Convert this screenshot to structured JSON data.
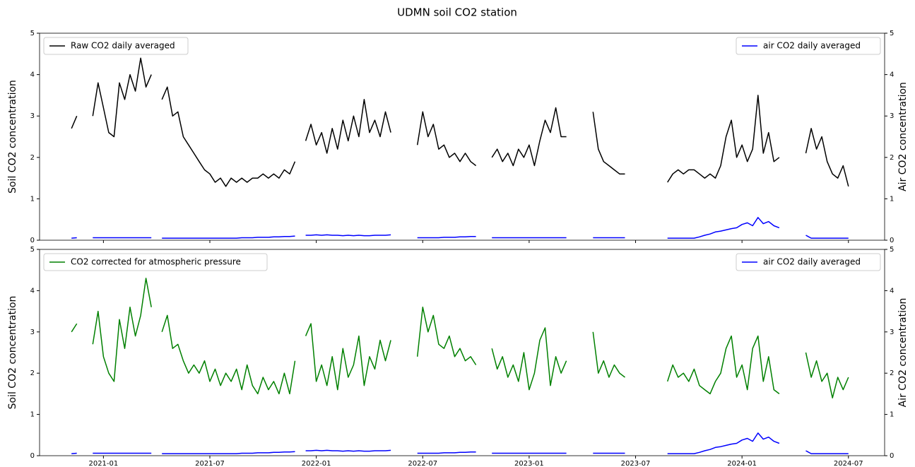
{
  "title": "UDMN soil CO2 station",
  "chart_data": [
    {
      "type": "line",
      "ylabel": "Soil CO2 concentration",
      "y2label": "Air CO2 concentration",
      "x": [
        2020.85,
        2020.875,
        2020.9,
        2020.925,
        2020.95,
        2020.975,
        2021.0,
        2021.025,
        2021.05,
        2021.075,
        2021.1,
        2021.125,
        2021.15,
        2021.175,
        2021.2,
        2021.225,
        2021.25,
        2021.275,
        2021.3,
        2021.325,
        2021.35,
        2021.375,
        2021.4,
        2021.425,
        2021.45,
        2021.475,
        2021.5,
        2021.525,
        2021.55,
        2021.575,
        2021.6,
        2021.625,
        2021.65,
        2021.675,
        2021.7,
        2021.725,
        2021.75,
        2021.775,
        2021.8,
        2021.825,
        2021.85,
        2021.875,
        2021.9,
        2021.925,
        2021.95,
        2021.975,
        2022.0,
        2022.025,
        2022.05,
        2022.075,
        2022.1,
        2022.125,
        2022.15,
        2022.175,
        2022.2,
        2022.225,
        2022.25,
        2022.275,
        2022.3,
        2022.325,
        2022.35,
        2022.375,
        2022.4,
        2022.425,
        2022.45,
        2022.475,
        2022.5,
        2022.525,
        2022.55,
        2022.575,
        2022.6,
        2022.625,
        2022.65,
        2022.675,
        2022.7,
        2022.725,
        2022.75,
        2022.775,
        2022.8,
        2022.825,
        2022.85,
        2022.875,
        2022.9,
        2022.925,
        2022.95,
        2022.975,
        2023.0,
        2023.025,
        2023.05,
        2023.075,
        2023.1,
        2023.125,
        2023.15,
        2023.175,
        2023.2,
        2023.225,
        2023.25,
        2023.275,
        2023.3,
        2023.325,
        2023.35,
        2023.375,
        2023.4,
        2023.425,
        2023.45,
        2023.475,
        2023.5,
        2023.525,
        2023.55,
        2023.575,
        2023.6,
        2023.625,
        2023.65,
        2023.675,
        2023.7,
        2023.725,
        2023.75,
        2023.775,
        2023.8,
        2023.825,
        2023.85,
        2023.875,
        2023.9,
        2023.925,
        2023.95,
        2023.975,
        2024.0,
        2024.025,
        2024.05,
        2024.075,
        2024.1,
        2024.125,
        2024.15,
        2024.175,
        2024.2,
        2024.225,
        2024.25,
        2024.275,
        2024.3,
        2024.325,
        2024.35,
        2024.375,
        2024.4,
        2024.425,
        2024.45,
        2024.475,
        2024.5
      ],
      "xlim": [
        2020.7,
        2024.67
      ],
      "xticks": [
        2021,
        2021.5,
        2022,
        2022.5,
        2023,
        2023.5,
        2024,
        2024.5
      ],
      "ylim": [
        0,
        5
      ],
      "yticks": [
        0,
        1,
        2,
        3,
        4,
        5
      ],
      "y2lim": [
        0,
        5
      ],
      "y2ticks": [
        0,
        1,
        2,
        3,
        4,
        5
      ],
      "series": [
        {
          "name": "Raw CO2 daily averaged",
          "color": "#000000",
          "legend": "upper left",
          "values": [
            2.7,
            3.0,
            null,
            null,
            3.0,
            3.8,
            3.2,
            2.6,
            2.5,
            3.8,
            3.4,
            4.0,
            3.6,
            4.4,
            3.7,
            4.0,
            null,
            3.4,
            3.7,
            3.0,
            3.1,
            2.5,
            2.3,
            2.1,
            1.9,
            1.7,
            1.6,
            1.4,
            1.5,
            1.3,
            1.5,
            1.4,
            1.5,
            1.4,
            1.5,
            1.5,
            1.6,
            1.5,
            1.6,
            1.5,
            1.7,
            1.6,
            1.9,
            null,
            2.4,
            2.8,
            2.3,
            2.6,
            2.1,
            2.7,
            2.2,
            2.9,
            2.4,
            3.0,
            2.5,
            3.4,
            2.6,
            2.9,
            2.5,
            3.1,
            2.6,
            null,
            null,
            null,
            null,
            2.3,
            3.1,
            2.5,
            2.8,
            2.2,
            2.3,
            2.0,
            2.1,
            1.9,
            2.1,
            1.9,
            1.8,
            null,
            null,
            2.0,
            2.2,
            1.9,
            2.1,
            1.8,
            2.2,
            2.0,
            2.3,
            1.8,
            2.4,
            2.9,
            2.6,
            3.2,
            2.5,
            2.5,
            null,
            null,
            null,
            null,
            3.1,
            2.2,
            1.9,
            1.8,
            1.7,
            1.6,
            1.6,
            null,
            null,
            null,
            null,
            null,
            null,
            null,
            1.4,
            1.6,
            1.7,
            1.6,
            1.7,
            1.7,
            1.6,
            1.5,
            1.6,
            1.5,
            1.8,
            2.5,
            2.9,
            2.0,
            2.3,
            1.9,
            2.2,
            3.5,
            2.1,
            2.6,
            1.9,
            2.0,
            null,
            null,
            null,
            null,
            2.1,
            2.7,
            2.2,
            2.5,
            1.9,
            1.6,
            1.5,
            1.8,
            1.3
          ]
        },
        {
          "name": "air CO2 daily averaged",
          "color": "#0000ff",
          "axis": "y2",
          "legend": "upper right",
          "values": [
            0.05,
            0.06,
            null,
            null,
            0.06,
            0.06,
            0.06,
            0.06,
            0.06,
            0.06,
            0.06,
            0.06,
            0.06,
            0.06,
            0.06,
            0.06,
            null,
            0.05,
            0.05,
            0.05,
            0.05,
            0.05,
            0.05,
            0.05,
            0.05,
            0.05,
            0.05,
            0.05,
            0.05,
            0.05,
            0.05,
            0.05,
            0.06,
            0.06,
            0.06,
            0.07,
            0.07,
            0.07,
            0.08,
            0.08,
            0.09,
            0.09,
            0.1,
            null,
            0.12,
            0.12,
            0.13,
            0.12,
            0.13,
            0.12,
            0.12,
            0.11,
            0.12,
            0.11,
            0.12,
            0.11,
            0.11,
            0.12,
            0.12,
            0.12,
            0.13,
            null,
            null,
            null,
            null,
            0.06,
            0.06,
            0.06,
            0.06,
            0.06,
            0.07,
            0.07,
            0.07,
            0.08,
            0.08,
            0.09,
            0.09,
            null,
            null,
            0.06,
            0.06,
            0.06,
            0.06,
            0.06,
            0.06,
            0.06,
            0.06,
            0.06,
            0.06,
            0.06,
            0.06,
            0.06,
            0.06,
            0.06,
            null,
            null,
            null,
            null,
            0.06,
            0.06,
            0.06,
            0.06,
            0.06,
            0.06,
            0.06,
            null,
            null,
            null,
            null,
            null,
            null,
            null,
            0.05,
            0.05,
            0.05,
            0.05,
            0.05,
            0.05,
            0.08,
            0.12,
            0.15,
            0.2,
            0.22,
            0.25,
            0.28,
            0.3,
            0.38,
            0.42,
            0.35,
            0.55,
            0.4,
            0.45,
            0.35,
            0.3,
            null,
            null,
            null,
            null,
            0.12,
            0.05,
            0.05,
            0.05,
            0.05,
            0.05,
            0.05,
            0.05,
            0.05
          ]
        }
      ]
    },
    {
      "type": "line",
      "ylabel": "Soil CO2 concentration",
      "y2label": "Air CO2 concentration",
      "x": [
        2020.85,
        2020.875,
        2020.9,
        2020.925,
        2020.95,
        2020.975,
        2021.0,
        2021.025,
        2021.05,
        2021.075,
        2021.1,
        2021.125,
        2021.15,
        2021.175,
        2021.2,
        2021.225,
        2021.25,
        2021.275,
        2021.3,
        2021.325,
        2021.35,
        2021.375,
        2021.4,
        2021.425,
        2021.45,
        2021.475,
        2021.5,
        2021.525,
        2021.55,
        2021.575,
        2021.6,
        2021.625,
        2021.65,
        2021.675,
        2021.7,
        2021.725,
        2021.75,
        2021.775,
        2021.8,
        2021.825,
        2021.85,
        2021.875,
        2021.9,
        2021.925,
        2021.95,
        2021.975,
        2022.0,
        2022.025,
        2022.05,
        2022.075,
        2022.1,
        2022.125,
        2022.15,
        2022.175,
        2022.2,
        2022.225,
        2022.25,
        2022.275,
        2022.3,
        2022.325,
        2022.35,
        2022.375,
        2022.4,
        2022.425,
        2022.45,
        2022.475,
        2022.5,
        2022.525,
        2022.55,
        2022.575,
        2022.6,
        2022.625,
        2022.65,
        2022.675,
        2022.7,
        2022.725,
        2022.75,
        2022.775,
        2022.8,
        2022.825,
        2022.85,
        2022.875,
        2022.9,
        2022.925,
        2022.95,
        2022.975,
        2023.0,
        2023.025,
        2023.05,
        2023.075,
        2023.1,
        2023.125,
        2023.15,
        2023.175,
        2023.2,
        2023.225,
        2023.25,
        2023.275,
        2023.3,
        2023.325,
        2023.35,
        2023.375,
        2023.4,
        2023.425,
        2023.45,
        2023.475,
        2023.5,
        2023.525,
        2023.55,
        2023.575,
        2023.6,
        2023.625,
        2023.65,
        2023.675,
        2023.7,
        2023.725,
        2023.75,
        2023.775,
        2023.8,
        2023.825,
        2023.85,
        2023.875,
        2023.9,
        2023.925,
        2023.95,
        2023.975,
        2024.0,
        2024.025,
        2024.05,
        2024.075,
        2024.1,
        2024.125,
        2024.15,
        2024.175,
        2024.2,
        2024.225,
        2024.25,
        2024.275,
        2024.3,
        2024.325,
        2024.35,
        2024.375,
        2024.4,
        2024.425,
        2024.45,
        2024.475,
        2024.5
      ],
      "xlim": [
        2020.7,
        2024.67
      ],
      "xticks": [
        {
          "value": 2021,
          "label": "2021-01"
        },
        {
          "value": 2021.5,
          "label": "2021-07"
        },
        {
          "value": 2022,
          "label": "2022-01"
        },
        {
          "value": 2022.5,
          "label": "2022-07"
        },
        {
          "value": 2023,
          "label": "2023-01"
        },
        {
          "value": 2023.5,
          "label": "2023-07"
        },
        {
          "value": 2024,
          "label": "2024-01"
        },
        {
          "value": 2024.5,
          "label": "2024-07"
        }
      ],
      "ylim": [
        0,
        5
      ],
      "yticks": [
        0,
        1,
        2,
        3,
        4,
        5
      ],
      "y2lim": [
        0,
        5
      ],
      "y2ticks": [
        0,
        1,
        2,
        3,
        4,
        5
      ],
      "series": [
        {
          "name": "CO2 corrected for atmospheric pressure",
          "color": "#008000",
          "legend": "upper left",
          "values": [
            3.0,
            3.2,
            null,
            null,
            2.7,
            3.5,
            2.4,
            2.0,
            1.8,
            3.3,
            2.6,
            3.6,
            2.9,
            3.4,
            4.3,
            3.6,
            null,
            3.0,
            3.4,
            2.6,
            2.7,
            2.3,
            2.0,
            2.2,
            2.0,
            2.3,
            1.8,
            2.1,
            1.7,
            2.0,
            1.8,
            2.1,
            1.6,
            2.2,
            1.7,
            1.5,
            1.9,
            1.6,
            1.8,
            1.5,
            2.0,
            1.5,
            2.3,
            null,
            2.9,
            3.2,
            1.8,
            2.2,
            1.7,
            2.4,
            1.6,
            2.6,
            1.9,
            2.2,
            2.9,
            1.7,
            2.4,
            2.1,
            2.8,
            2.3,
            2.8,
            null,
            null,
            null,
            null,
            2.4,
            3.6,
            3.0,
            3.4,
            2.7,
            2.6,
            2.9,
            2.4,
            2.6,
            2.3,
            2.4,
            2.2,
            null,
            null,
            2.6,
            2.1,
            2.4,
            1.9,
            2.2,
            1.8,
            2.5,
            1.6,
            2.0,
            2.8,
            3.1,
            1.7,
            2.4,
            2.0,
            2.3,
            null,
            null,
            null,
            null,
            3.0,
            2.0,
            2.3,
            1.9,
            2.2,
            2.0,
            1.9,
            null,
            null,
            null,
            null,
            null,
            null,
            null,
            1.8,
            2.2,
            1.9,
            2.0,
            1.8,
            2.1,
            1.7,
            1.6,
            1.5,
            1.8,
            2.0,
            2.6,
            2.9,
            1.9,
            2.2,
            1.6,
            2.6,
            2.9,
            1.8,
            2.4,
            1.6,
            1.5,
            null,
            null,
            null,
            null,
            2.5,
            1.9,
            2.3,
            1.8,
            2.0,
            1.4,
            1.9,
            1.6,
            1.9
          ]
        },
        {
          "name": "air CO2 daily averaged",
          "color": "#0000ff",
          "axis": "y2",
          "legend": "upper right",
          "values": [
            0.05,
            0.06,
            null,
            null,
            0.06,
            0.06,
            0.06,
            0.06,
            0.06,
            0.06,
            0.06,
            0.06,
            0.06,
            0.06,
            0.06,
            0.06,
            null,
            0.05,
            0.05,
            0.05,
            0.05,
            0.05,
            0.05,
            0.05,
            0.05,
            0.05,
            0.05,
            0.05,
            0.05,
            0.05,
            0.05,
            0.05,
            0.06,
            0.06,
            0.06,
            0.07,
            0.07,
            0.07,
            0.08,
            0.08,
            0.09,
            0.09,
            0.1,
            null,
            0.12,
            0.12,
            0.13,
            0.12,
            0.13,
            0.12,
            0.12,
            0.11,
            0.12,
            0.11,
            0.12,
            0.11,
            0.11,
            0.12,
            0.12,
            0.12,
            0.13,
            null,
            null,
            null,
            null,
            0.06,
            0.06,
            0.06,
            0.06,
            0.06,
            0.07,
            0.07,
            0.07,
            0.08,
            0.08,
            0.09,
            0.09,
            null,
            null,
            0.06,
            0.06,
            0.06,
            0.06,
            0.06,
            0.06,
            0.06,
            0.06,
            0.06,
            0.06,
            0.06,
            0.06,
            0.06,
            0.06,
            0.06,
            null,
            null,
            null,
            null,
            0.06,
            0.06,
            0.06,
            0.06,
            0.06,
            0.06,
            0.06,
            null,
            null,
            null,
            null,
            null,
            null,
            null,
            0.05,
            0.05,
            0.05,
            0.05,
            0.05,
            0.05,
            0.08,
            0.12,
            0.15,
            0.2,
            0.22,
            0.25,
            0.28,
            0.3,
            0.38,
            0.42,
            0.35,
            0.55,
            0.4,
            0.45,
            0.35,
            0.3,
            null,
            null,
            null,
            null,
            0.12,
            0.05,
            0.05,
            0.05,
            0.05,
            0.05,
            0.05,
            0.05,
            0.05
          ]
        }
      ]
    }
  ]
}
